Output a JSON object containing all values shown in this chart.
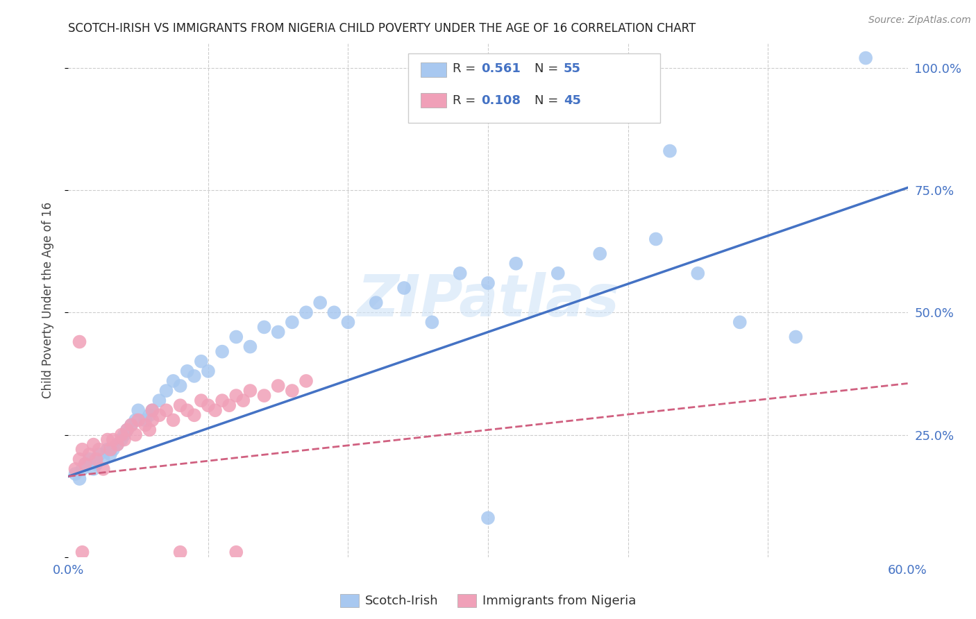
{
  "title": "SCOTCH-IRISH VS IMMIGRANTS FROM NIGERIA CHILD POVERTY UNDER THE AGE OF 16 CORRELATION CHART",
  "source": "Source: ZipAtlas.com",
  "ylabel": "Child Poverty Under the Age of 16",
  "xlim": [
    0.0,
    0.6
  ],
  "ylim": [
    0.0,
    1.05
  ],
  "scotch_irish_color": "#a8c8f0",
  "nigeria_color": "#f0a0b8",
  "scotch_irish_line_color": "#4472c4",
  "nigeria_line_color": "#d06080",
  "scotch_irish_R": 0.561,
  "scotch_irish_N": 55,
  "nigeria_R": 0.108,
  "nigeria_N": 45,
  "watermark": "ZIPatlas",
  "background_color": "#ffffff",
  "grid_color": "#cccccc",
  "si_line_x0": 0.0,
  "si_line_y0": 0.165,
  "si_line_x1": 0.6,
  "si_line_y1": 0.755,
  "ng_line_x0": 0.0,
  "ng_line_y0": 0.165,
  "ng_line_x1": 0.6,
  "ng_line_y1": 0.355,
  "scotch_irish_x": [
    0.005,
    0.008,
    0.01,
    0.012,
    0.015,
    0.018,
    0.02,
    0.022,
    0.025,
    0.028,
    0.03,
    0.032,
    0.035,
    0.038,
    0.04,
    0.042,
    0.045,
    0.048,
    0.05,
    0.055,
    0.058,
    0.06,
    0.065,
    0.07,
    0.075,
    0.08,
    0.085,
    0.09,
    0.095,
    0.1,
    0.11,
    0.12,
    0.13,
    0.14,
    0.15,
    0.16,
    0.17,
    0.18,
    0.19,
    0.2,
    0.22,
    0.24,
    0.26,
    0.28,
    0.3,
    0.32,
    0.35,
    0.38,
    0.42,
    0.45,
    0.48,
    0.52,
    0.3,
    0.43,
    0.57
  ],
  "scotch_irish_y": [
    0.17,
    0.16,
    0.18,
    0.19,
    0.2,
    0.18,
    0.19,
    0.21,
    0.2,
    0.22,
    0.21,
    0.22,
    0.23,
    0.24,
    0.25,
    0.26,
    0.27,
    0.28,
    0.3,
    0.28,
    0.29,
    0.3,
    0.32,
    0.34,
    0.36,
    0.35,
    0.38,
    0.37,
    0.4,
    0.38,
    0.42,
    0.45,
    0.43,
    0.47,
    0.46,
    0.48,
    0.5,
    0.52,
    0.5,
    0.48,
    0.52,
    0.55,
    0.48,
    0.58,
    0.56,
    0.6,
    0.58,
    0.62,
    0.65,
    0.58,
    0.48,
    0.45,
    0.08,
    0.83,
    1.02
  ],
  "nigeria_x": [
    0.005,
    0.008,
    0.01,
    0.012,
    0.015,
    0.018,
    0.02,
    0.022,
    0.025,
    0.028,
    0.03,
    0.032,
    0.035,
    0.038,
    0.04,
    0.042,
    0.045,
    0.048,
    0.05,
    0.055,
    0.058,
    0.06,
    0.065,
    0.07,
    0.075,
    0.08,
    0.085,
    0.09,
    0.095,
    0.1,
    0.105,
    0.11,
    0.115,
    0.12,
    0.125,
    0.13,
    0.14,
    0.15,
    0.16,
    0.17,
    0.008,
    0.01,
    0.06,
    0.08,
    0.12
  ],
  "nigeria_y": [
    0.18,
    0.2,
    0.22,
    0.19,
    0.21,
    0.23,
    0.2,
    0.22,
    0.18,
    0.24,
    0.22,
    0.24,
    0.23,
    0.25,
    0.24,
    0.26,
    0.27,
    0.25,
    0.28,
    0.27,
    0.26,
    0.28,
    0.29,
    0.3,
    0.28,
    0.31,
    0.3,
    0.29,
    0.32,
    0.31,
    0.3,
    0.32,
    0.31,
    0.33,
    0.32,
    0.34,
    0.33,
    0.35,
    0.34,
    0.36,
    0.44,
    0.01,
    0.3,
    0.01,
    0.01
  ]
}
